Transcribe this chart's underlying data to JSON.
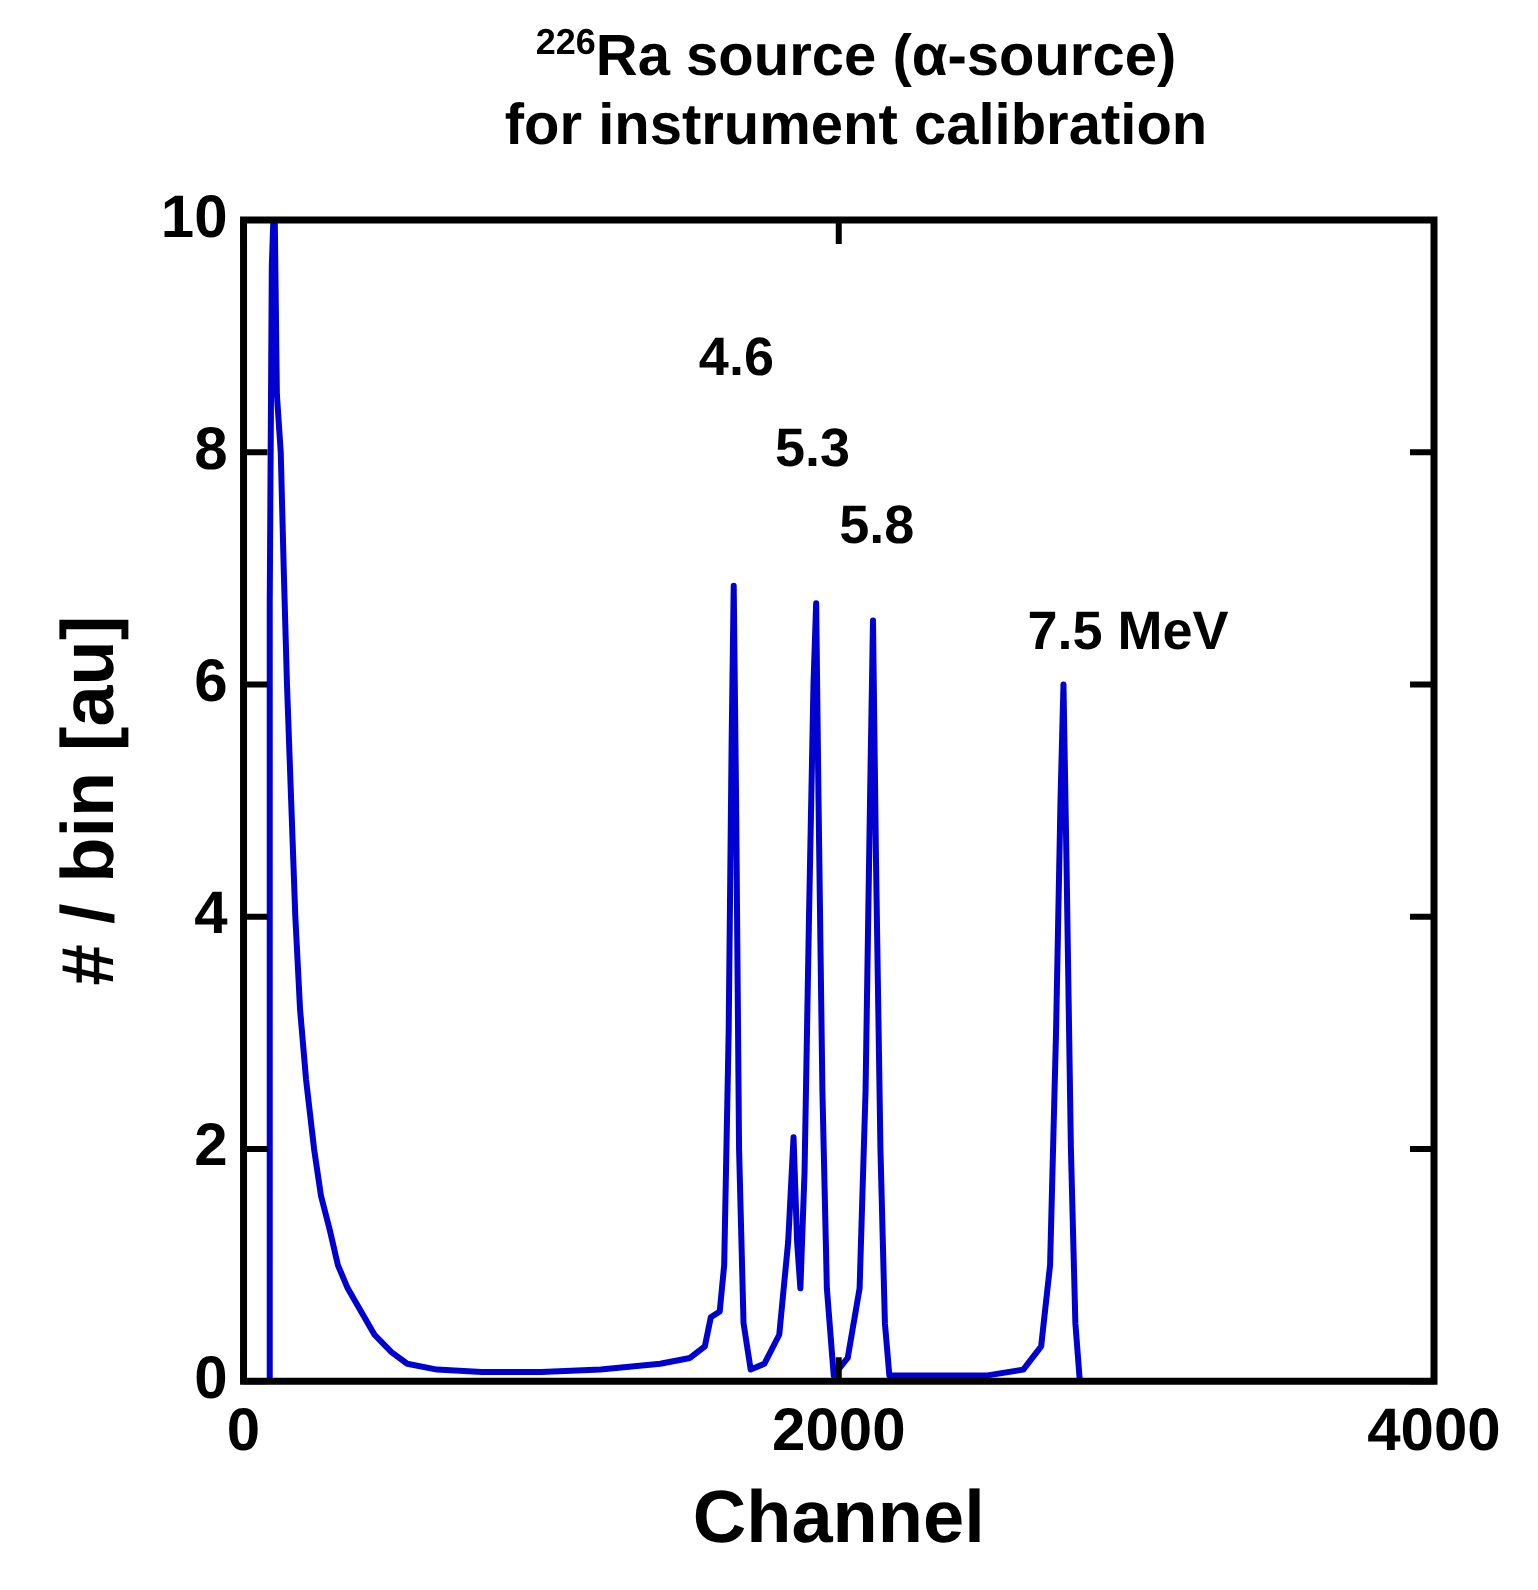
{
  "chart_data": {
    "type": "line",
    "title": "$^{226}$Ra source (α-source)\nfor instrument calibration",
    "xlabel": "Channel",
    "ylabel": "# / bin [au]",
    "x": [
      80,
      85,
      88,
      95,
      100,
      105,
      112,
      125,
      135,
      146,
      160,
      174,
      190,
      210,
      237,
      260,
      290,
      317,
      350,
      395,
      440,
      497,
      550,
      650,
      800,
      1000,
      1200,
      1400,
      1500,
      1550,
      1570,
      1600,
      1615,
      1630,
      1640,
      1647,
      1655,
      1665,
      1680,
      1704,
      1750,
      1800,
      1830,
      1848,
      1860,
      1871,
      1885,
      1900,
      1915,
      1924,
      1932,
      1945,
      1960,
      1983,
      2030,
      2070,
      2090,
      2105,
      2115,
      2125,
      2140,
      2155,
      2170,
      2300,
      2500,
      2620,
      2680,
      2710,
      2730,
      2745,
      2755,
      2765,
      2780,
      2795,
      2810
    ],
    "series": [
      {
        "color": "#0000d0",
        "values": [
          0,
          0,
          6.7,
          9.6,
          10,
          10,
          8.5,
          8.0,
          7.0,
          6.0,
          5.0,
          4.0,
          3.2,
          2.6,
          2.0,
          1.6,
          1.3,
          1.0,
          0.8,
          0.6,
          0.4,
          0.25,
          0.15,
          0.1,
          0.08,
          0.08,
          0.1,
          0.15,
          0.2,
          0.3,
          0.55,
          0.6,
          1.0,
          3.0,
          5.5,
          6.85,
          5.0,
          2.0,
          0.5,
          0.1,
          0.15,
          0.4,
          1.2,
          2.1,
          1.2,
          0.8,
          1.8,
          4.0,
          6.0,
          6.7,
          5.0,
          2.5,
          0.8,
          0.05,
          0.2,
          0.8,
          2.5,
          5.0,
          6.55,
          4.5,
          2.0,
          0.5,
          0.05,
          0.05,
          0.05,
          0.1,
          0.3,
          1.0,
          3.0,
          5.0,
          6.0,
          4.5,
          2.0,
          0.5,
          0
        ]
      }
    ],
    "xlim": [
      0,
      4000
    ],
    "xticks": [
      0,
      2000,
      4000
    ],
    "ylim": [
      0,
      10
    ],
    "yticks": [
      0,
      2,
      4,
      6,
      8,
      10
    ],
    "grid": false,
    "legend": false,
    "marker": "none",
    "line_style": "solid",
    "annotations": [
      "4.6",
      "5.3",
      "5.8",
      "7.5 MeV"
    ]
  }
}
